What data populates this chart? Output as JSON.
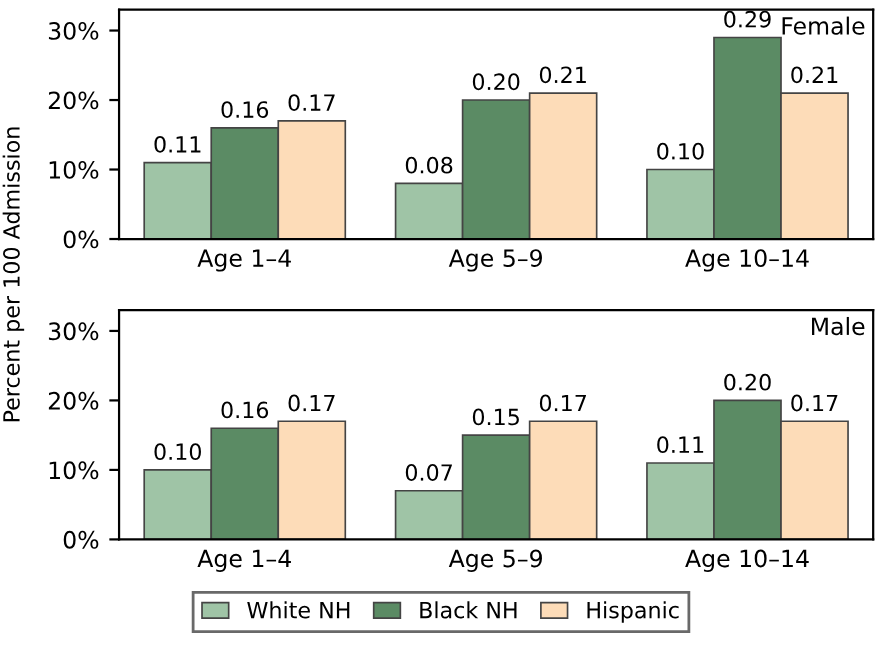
{
  "chart_data": [
    {
      "type": "bar",
      "ylabel": "Percent per 100 Admission",
      "annotations": [
        "Female"
      ],
      "categories": [
        "Age 1–4",
        "Age 5–9",
        "Age 10–14"
      ],
      "ylim": [
        0,
        0.33
      ],
      "yticks": [
        {
          "value": 0,
          "label": "0%"
        },
        {
          "value": 0.1,
          "label": "10%"
        },
        {
          "value": 0.2,
          "label": "20%"
        },
        {
          "value": 0.3,
          "label": "30%"
        }
      ],
      "grid": false,
      "legend": "bottom",
      "series": [
        {
          "name": "White NH",
          "color": "#9fc4a6",
          "values": [
            0.11,
            0.08,
            0.1
          ],
          "value_labels": [
            "0.11",
            "0.08",
            "0.10"
          ]
        },
        {
          "name": "Black NH",
          "color": "#5b8b64",
          "values": [
            0.16,
            0.2,
            0.29
          ],
          "value_labels": [
            "0.16",
            "0.20",
            "0.29"
          ]
        },
        {
          "name": "Hispanic",
          "color": "#fddcb8",
          "values": [
            0.17,
            0.21,
            0.21
          ],
          "value_labels": [
            "0.17",
            "0.21",
            "0.21"
          ]
        }
      ]
    },
    {
      "type": "bar",
      "annotations": [
        "Male"
      ],
      "categories": [
        "Age 1–4",
        "Age 5–9",
        "Age 10–14"
      ],
      "ylim": [
        0,
        0.33
      ],
      "yticks": [
        {
          "value": 0,
          "label": "0%"
        },
        {
          "value": 0.1,
          "label": "10%"
        },
        {
          "value": 0.2,
          "label": "20%"
        },
        {
          "value": 0.3,
          "label": "30%"
        }
      ],
      "grid": false,
      "series": [
        {
          "color": "#9fc4a6",
          "values": [
            0.1,
            0.07,
            0.11
          ],
          "value_labels": [
            "0.10",
            "0.07",
            "0.11"
          ]
        },
        {
          "color": "#5b8b64",
          "values": [
            0.16,
            0.15,
            0.2
          ],
          "value_labels": [
            "0.16",
            "0.15",
            "0.20"
          ]
        },
        {
          "color": "#fddcb8",
          "values": [
            0.17,
            0.17,
            0.17
          ],
          "value_labels": [
            "0.17",
            "0.17",
            "0.17"
          ]
        }
      ]
    }
  ]
}
